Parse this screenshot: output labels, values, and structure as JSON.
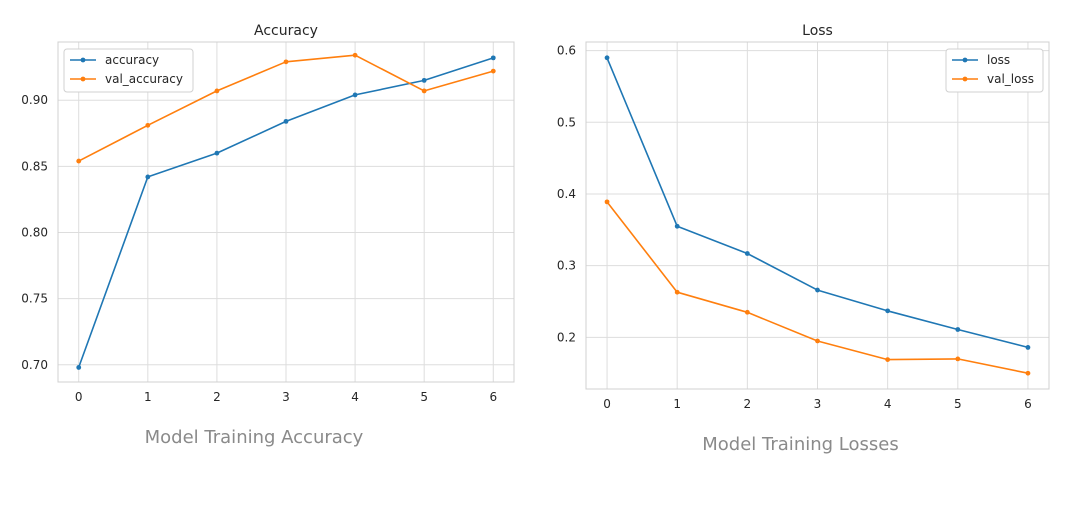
{
  "chart_data": [
    {
      "type": "line",
      "title": "Accuracy",
      "caption": "Model Training Accuracy",
      "x": [
        0,
        1,
        2,
        3,
        4,
        5,
        6
      ],
      "xlim": [
        -0.3,
        6.3
      ],
      "ylim": [
        0.687,
        0.944
      ],
      "yticks": [
        0.7,
        0.75,
        0.8,
        0.85,
        0.9
      ],
      "ytick_labels": [
        "0.70",
        "0.75",
        "0.80",
        "0.85",
        "0.90"
      ],
      "xtick_labels": [
        "0",
        "1",
        "2",
        "3",
        "4",
        "5",
        "6"
      ],
      "grid": true,
      "legend_loc": "top-left",
      "series": [
        {
          "name": "accuracy",
          "color": "#1f77b4",
          "values": [
            0.698,
            0.842,
            0.86,
            0.884,
            0.904,
            0.915,
            0.932
          ]
        },
        {
          "name": "val_accuracy",
          "color": "#ff7f0e",
          "values": [
            0.854,
            0.881,
            0.907,
            0.929,
            0.934,
            0.907,
            0.922
          ]
        }
      ]
    },
    {
      "type": "line",
      "title": "Loss",
      "caption": "Model Training Losses",
      "x": [
        0,
        1,
        2,
        3,
        4,
        5,
        6
      ],
      "xlim": [
        -0.3,
        6.3
      ],
      "ylim": [
        0.128,
        0.612
      ],
      "yticks": [
        0.2,
        0.3,
        0.4,
        0.5,
        0.6
      ],
      "ytick_labels": [
        "0.2",
        "0.3",
        "0.4",
        "0.5",
        "0.6"
      ],
      "xtick_labels": [
        "0",
        "1",
        "2",
        "3",
        "4",
        "5",
        "6"
      ],
      "grid": true,
      "legend_loc": "top-right",
      "series": [
        {
          "name": "loss",
          "color": "#1f77b4",
          "values": [
            0.59,
            0.355,
            0.317,
            0.266,
            0.237,
            0.211,
            0.186
          ]
        },
        {
          "name": "val_loss",
          "color": "#ff7f0e",
          "values": [
            0.389,
            0.263,
            0.235,
            0.195,
            0.169,
            0.17,
            0.15
          ]
        }
      ]
    }
  ]
}
